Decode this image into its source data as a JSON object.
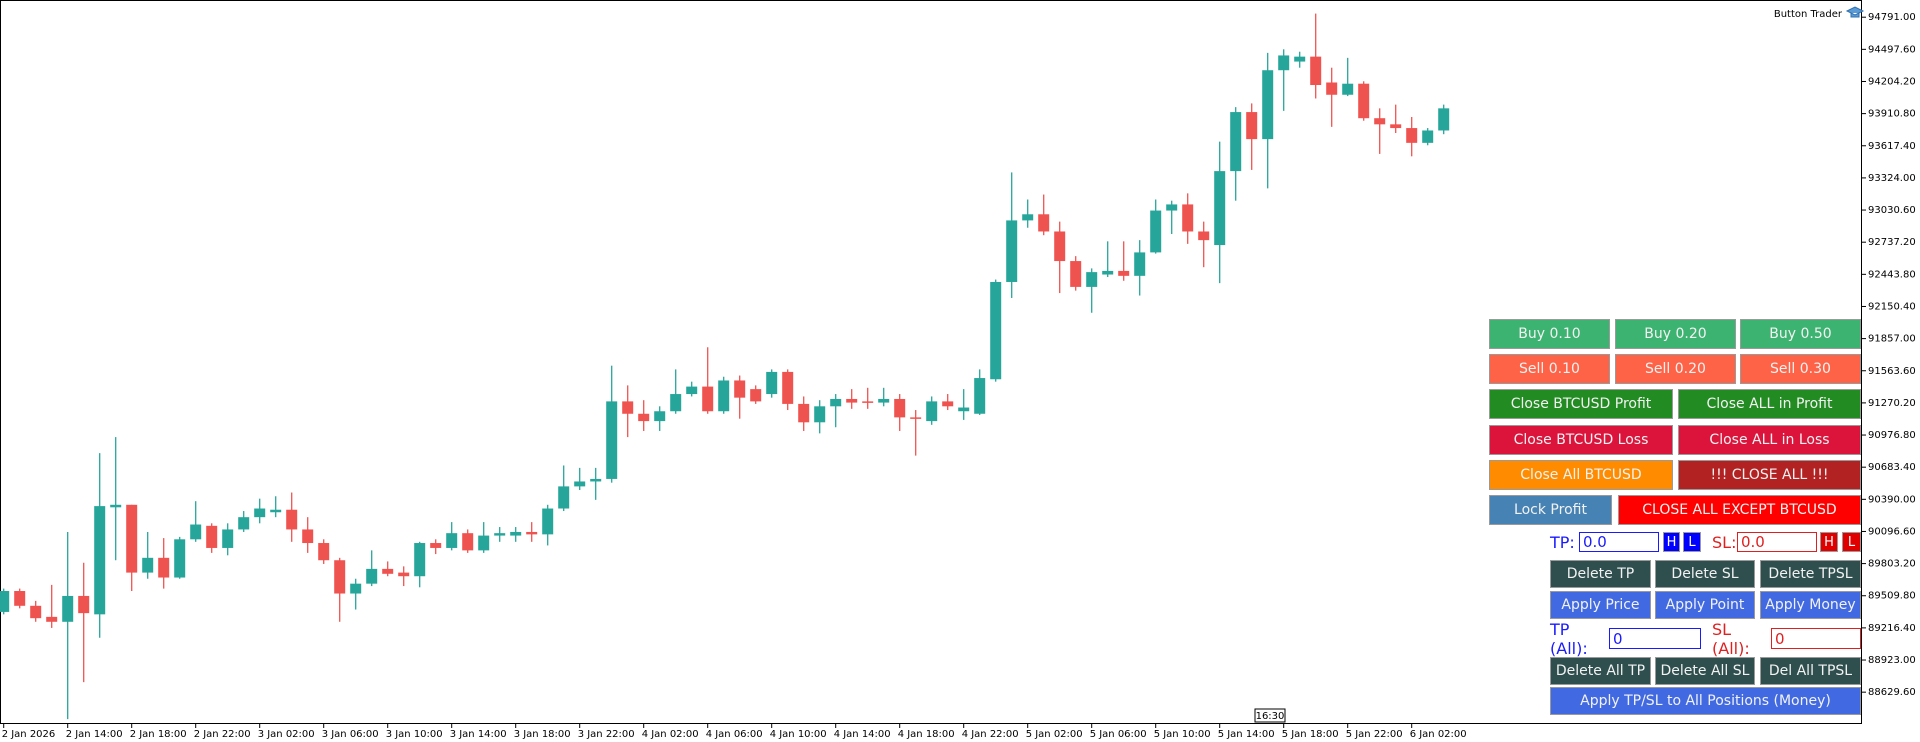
{
  "chart_data": {
    "type": "candlestick",
    "title": "Button Trader",
    "annotation": "16:30",
    "up_color": "#26a69a",
    "down_color": "#ef5350",
    "ylim": [
      88339,
      94948
    ],
    "yticks": [
      {
        "value": 94791,
        "label": "94791.00"
      },
      {
        "value": 94497.6,
        "label": "94497.60"
      },
      {
        "value": 94204.2,
        "label": "94204.20"
      },
      {
        "value": 93910.8,
        "label": "93910.80"
      },
      {
        "value": 93617.4,
        "label": "93617.40"
      },
      {
        "value": 93324,
        "label": "93324.00"
      },
      {
        "value": 93030.6,
        "label": "93030.60"
      },
      {
        "value": 92737.2,
        "label": "92737.20"
      },
      {
        "value": 92443.8,
        "label": "92443.80"
      },
      {
        "value": 92150.4,
        "label": "92150.40"
      },
      {
        "value": 91857,
        "label": "91857.00"
      },
      {
        "value": 91563.6,
        "label": "91563.60"
      },
      {
        "value": 91270.2,
        "label": "91270.20"
      },
      {
        "value": 90976.8,
        "label": "90976.80"
      },
      {
        "value": 90683.4,
        "label": "90683.40"
      },
      {
        "value": 90390,
        "label": "90390.00"
      },
      {
        "value": 90096.6,
        "label": "90096.60"
      },
      {
        "value": 89803.2,
        "label": "89803.20"
      },
      {
        "value": 89509.8,
        "label": "89509.80"
      },
      {
        "value": 89216.4,
        "label": "89216.40"
      },
      {
        "value": 88923,
        "label": "88923.00"
      },
      {
        "value": 88629.6,
        "label": "88629.60"
      }
    ],
    "categories": [
      "2 Jan 2026",
      null,
      null,
      null,
      "2 Jan 14:00",
      null,
      null,
      null,
      "2 Jan 18:00",
      null,
      null,
      null,
      "2 Jan 22:00",
      null,
      null,
      null,
      "3 Jan 02:00",
      null,
      null,
      null,
      "3 Jan 06:00",
      null,
      null,
      null,
      "3 Jan 10:00",
      null,
      null,
      null,
      "3 Jan 14:00",
      null,
      null,
      null,
      "3 Jan 18:00",
      null,
      null,
      null,
      "3 Jan 22:00",
      null,
      null,
      null,
      "4 Jan 02:00",
      null,
      null,
      null,
      "4 Jan 06:00",
      null,
      null,
      null,
      "4 Jan 10:00",
      null,
      null,
      null,
      "4 Jan 14:00",
      null,
      null,
      null,
      "4 Jan 18:00",
      null,
      null,
      null,
      "4 Jan 22:00",
      null,
      null,
      null,
      "5 Jan 02:00",
      null,
      null,
      null,
      "5 Jan 06:00",
      null,
      null,
      null,
      "5 Jan 10:00",
      null,
      null,
      null,
      "5 Jan 14:00",
      null,
      null,
      null,
      "5 Jan 18:00",
      null,
      null,
      null,
      "5 Jan 22:00",
      null,
      null,
      null,
      "6 Jan 02:00",
      null,
      null
    ],
    "open": [
      89362,
      89553,
      89418,
      89317,
      89272,
      89508,
      89340,
      90317,
      90340,
      89721,
      89856,
      89676,
      90025,
      90148,
      89946,
      90115,
      90227,
      90272,
      90295,
      90115,
      89991,
      89834,
      89530,
      89620,
      89755,
      89721,
      89688,
      89991,
      89946,
      90081,
      89924,
      90059,
      90059,
      90092,
      90070,
      90306,
      90508,
      90553,
      90576,
      91284,
      91171,
      91104,
      91194,
      91351,
      91419,
      91194,
      91475,
      91396,
      91351,
      91553,
      91261,
      91093,
      91239,
      91306,
      91284,
      91273,
      91306,
      91138,
      91104,
      91284,
      91194,
      91171,
      91486,
      92374,
      92936,
      92992,
      92835,
      92565,
      92329,
      92442,
      92475,
      92430,
      92644,
      93026,
      93082,
      92835,
      92711,
      93386,
      93925,
      93678,
      94307,
      94386,
      94431,
      94195,
      94083,
      94184,
      93869,
      93813,
      93779,
      93644,
      93757
    ],
    "high": [
      89575,
      89575,
      89463,
      89609,
      90092,
      89811,
      90812,
      90958,
      90340,
      90092,
      90036,
      90047,
      90373,
      90171,
      90171,
      90283,
      90396,
      90418,
      90452,
      90227,
      90025,
      89856,
      89665,
      89924,
      89823,
      89778,
      90002,
      90025,
      90182,
      90115,
      90182,
      90137,
      90137,
      90182,
      90340,
      90699,
      90677,
      90677,
      91610,
      91430,
      91295,
      91239,
      91576,
      91464,
      91778,
      91509,
      91520,
      91430,
      91576,
      91576,
      91329,
      91295,
      91351,
      91396,
      91408,
      91408,
      91351,
      91205,
      91329,
      91351,
      91396,
      91576,
      92396,
      93374,
      93127,
      93172,
      92925,
      92610,
      92498,
      92745,
      92745,
      92756,
      93127,
      93116,
      93183,
      92925,
      93655,
      93970,
      94004,
      94465,
      94498,
      94476,
      94824,
      94330,
      94420,
      94206,
      93959,
      93993,
      93880,
      93779,
      93993
    ],
    "low": [
      89340,
      89395,
      89272,
      89216,
      88384,
      88721,
      89126,
      89834,
      89553,
      89665,
      89575,
      89665,
      90002,
      89901,
      89879,
      90092,
      90171,
      90227,
      90002,
      89901,
      89800,
      89272,
      89384,
      89598,
      89688,
      89598,
      89587,
      89890,
      89924,
      89901,
      89901,
      90002,
      90002,
      90002,
      89969,
      90283,
      90475,
      90385,
      90542,
      90958,
      91014,
      91014,
      91171,
      91329,
      91171,
      91171,
      91126,
      91261,
      91318,
      91205,
      91014,
      90992,
      91048,
      91216,
      91216,
      91239,
      91014,
      90789,
      91070,
      91205,
      91115,
      91160,
      91464,
      92228,
      92869,
      92801,
      92273,
      92295,
      92093,
      92419,
      92385,
      92250,
      92633,
      92812,
      92722,
      92509,
      92363,
      93116,
      93397,
      93228,
      93936,
      94330,
      94049,
      93790,
      94071,
      93846,
      93543,
      93734,
      93521,
      93622,
      93723
    ],
    "close": [
      89553,
      89418,
      89305,
      89272,
      89508,
      89351,
      90328,
      90340,
      89721,
      89856,
      89676,
      90025,
      90160,
      89946,
      90115,
      90227,
      90306,
      90295,
      90115,
      89991,
      89834,
      89530,
      89620,
      89755,
      89710,
      89688,
      89991,
      89946,
      90081,
      89924,
      90059,
      90081,
      90092,
      90070,
      90306,
      90508,
      90553,
      90576,
      91284,
      91171,
      91104,
      91194,
      91351,
      91419,
      91194,
      91475,
      91318,
      91284,
      91553,
      91261,
      91093,
      91239,
      91306,
      91273,
      91273,
      91306,
      91138,
      91126,
      91284,
      91239,
      91228,
      91497,
      92374,
      92936,
      92992,
      92835,
      92565,
      92329,
      92464,
      92475,
      92430,
      92644,
      93026,
      93082,
      92835,
      92756,
      93386,
      93925,
      93678,
      94307,
      94442,
      94431,
      94172,
      94083,
      94184,
      93869,
      93813,
      93779,
      93644,
      93757,
      93959
    ]
  },
  "panel": {
    "rows": [
      [
        "Buy 0.10",
        "Buy 0.20",
        "Buy 0.50"
      ],
      [
        "Sell 0.10",
        "Sell 0.20",
        "Sell 0.30"
      ],
      [
        "Close BTCUSD Profit",
        "Close ALL in Profit"
      ],
      [
        "Close BTCUSD Loss",
        "Close ALL in Loss"
      ],
      [
        "Close All BTCUSD",
        "!!! CLOSE ALL !!!"
      ],
      [
        "Lock Profit",
        "CLOSE ALL EXCEPT BTCUSD"
      ]
    ],
    "tp_label": "TP:",
    "tp_value": "0.0",
    "sl_label": "SL:",
    "sl_value": "0.0",
    "high": "H",
    "low": "L",
    "tpsl_rows": [
      [
        "Delete TP",
        "Delete SL",
        "Delete TPSL"
      ],
      [
        "Apply Price",
        "Apply Point",
        "Apply Money"
      ]
    ],
    "tp_all_label": "TP (All):",
    "tp_all_value": "0",
    "sl_all_label": "SL (All):",
    "sl_all_value": "0",
    "all_rows": [
      [
        "Delete All TP",
        "Delete All SL",
        "Del All TPSL"
      ],
      [
        "Apply TP/SL to All Positions (Money)"
      ]
    ]
  }
}
